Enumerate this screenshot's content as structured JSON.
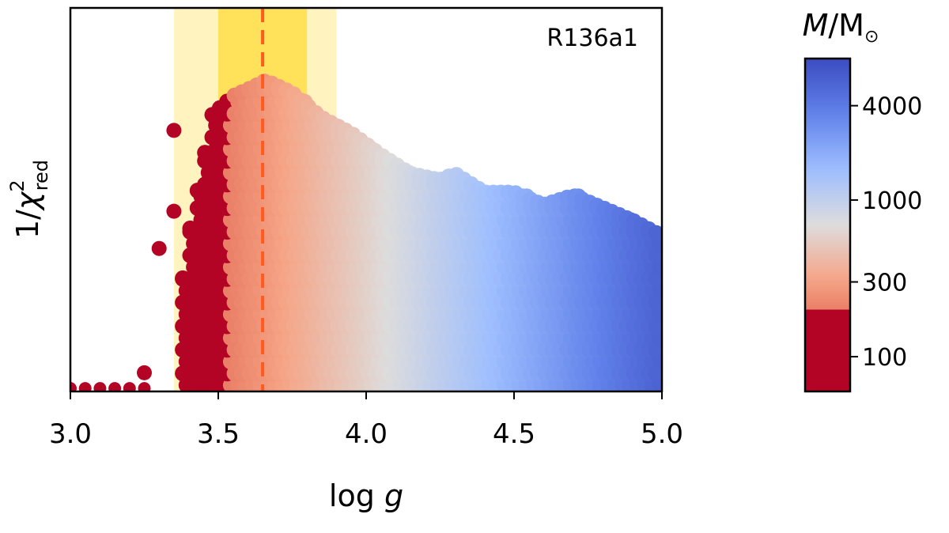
{
  "chart_data": {
    "type": "scatter",
    "title": "",
    "annotation": "R136a1",
    "xlabel": {
      "main": "log ",
      "var": "g"
    },
    "ylabel": {
      "prefix": "1/",
      "symbol": "χ",
      "sup": "2",
      "sub": "red"
    },
    "xlim": [
      3.0,
      5.0
    ],
    "xticks": [
      {
        "value": 3.0,
        "label": "3.0"
      },
      {
        "value": 3.5,
        "label": "3.5"
      },
      {
        "value": 4.0,
        "label": "4.0"
      },
      {
        "value": 4.5,
        "label": "4.5"
      },
      {
        "value": 5.0,
        "label": "5.0"
      }
    ],
    "ylim": [
      0.0,
      1.0
    ],
    "y_tick_labels": false,
    "best_fit_logg": 3.65,
    "inner_band": [
      3.5,
      3.8
    ],
    "outer_band": [
      3.35,
      3.9
    ],
    "band_colors": {
      "inner": "#ffe15a",
      "outer": "#fff3c0",
      "line": "#ff5a1f"
    },
    "colorbar": {
      "label": {
        "var": "M",
        "sep": "/M",
        "sub": "⊙"
      },
      "scale": "log",
      "range": [
        60,
        8000
      ],
      "ticks": [
        {
          "value": 100,
          "label": "100"
        },
        {
          "value": 300,
          "label": "300"
        },
        {
          "value": 1000,
          "label": "1000"
        },
        {
          "value": 4000,
          "label": "4000"
        }
      ],
      "colormap": "coolwarm_r",
      "colors": [
        "#b40426",
        "#dd5f4b",
        "#f6a385",
        "#dddcdc",
        "#9ebeff",
        "#6282ea",
        "#3b4cc0"
      ]
    },
    "point_color_rule": "mass ≈ 10^(logg − 1.24), shown via colorbar",
    "envelope": [
      {
        "x": 3.0,
        "y": 0.01
      },
      {
        "x": 3.28,
        "y": 0.03
      },
      {
        "x": 3.35,
        "y": 0.16
      },
      {
        "x": 3.4,
        "y": 0.5
      },
      {
        "x": 3.48,
        "y": 0.89
      },
      {
        "x": 3.55,
        "y": 0.95
      },
      {
        "x": 3.62,
        "y": 0.98
      },
      {
        "x": 3.66,
        "y": 1.0
      },
      {
        "x": 3.75,
        "y": 0.96
      },
      {
        "x": 3.85,
        "y": 0.88
      },
      {
        "x": 3.95,
        "y": 0.83
      },
      {
        "x": 4.05,
        "y": 0.76
      },
      {
        "x": 4.15,
        "y": 0.7
      },
      {
        "x": 4.25,
        "y": 0.68
      },
      {
        "x": 4.3,
        "y": 0.7
      },
      {
        "x": 4.4,
        "y": 0.64
      },
      {
        "x": 4.5,
        "y": 0.64
      },
      {
        "x": 4.6,
        "y": 0.6
      },
      {
        "x": 4.7,
        "y": 0.63
      },
      {
        "x": 4.8,
        "y": 0.59
      },
      {
        "x": 4.9,
        "y": 0.55
      },
      {
        "x": 5.0,
        "y": 0.5
      }
    ],
    "outliers": [
      {
        "x": 3.35,
        "y": 0.84
      },
      {
        "x": 3.3,
        "y": 0.46
      },
      {
        "x": 3.35,
        "y": 0.58
      },
      {
        "x": 3.25,
        "y": 0.06
      }
    ]
  }
}
